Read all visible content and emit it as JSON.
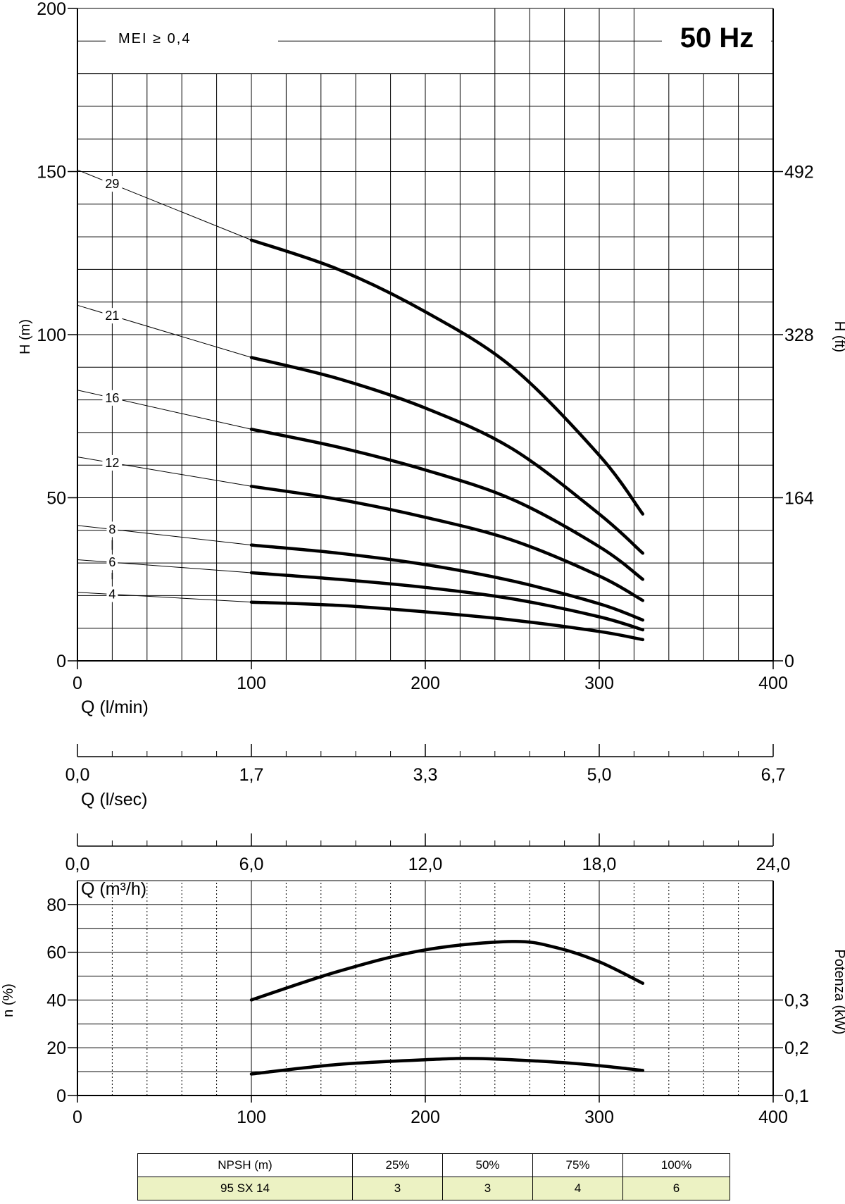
{
  "chart_data": [
    {
      "type": "line",
      "title": "",
      "frequency_label": "50 Hz",
      "mei_label": "MEI ≥ 0,4",
      "xlabel": "Q (l/min)",
      "ylabel": "H (m)",
      "ylabel_right": "H (ft)",
      "xlim": [
        0,
        400
      ],
      "ylim": [
        0,
        200
      ],
      "x_ticks": [
        "0",
        "100",
        "200",
        "300",
        "400"
      ],
      "y_ticks": [
        "0",
        "50",
        "100",
        "150",
        "200"
      ],
      "y_ticks_right": [
        "0",
        "164",
        "328",
        "492"
      ],
      "y_ticks_right_values": [
        0,
        50,
        100,
        150
      ],
      "grid": true,
      "series": [
        {
          "name": "29",
          "x": [
            100,
            150,
            200,
            250,
            300,
            325
          ],
          "y": [
            129,
            120,
            107,
            90,
            63,
            45
          ],
          "zero_flow_head": 150.5
        },
        {
          "name": "21",
          "x": [
            100,
            150,
            200,
            250,
            300,
            325
          ],
          "y": [
            93,
            86.5,
            77.5,
            65,
            45,
            33
          ],
          "zero_flow_head": 109
        },
        {
          "name": "16",
          "x": [
            100,
            150,
            200,
            250,
            300,
            325
          ],
          "y": [
            71,
            65.5,
            58.5,
            49.5,
            35,
            25
          ],
          "zero_flow_head": 83
        },
        {
          "name": "12",
          "x": [
            100,
            150,
            200,
            250,
            300,
            325
          ],
          "y": [
            53.5,
            49.5,
            44,
            37,
            26,
            18.5
          ],
          "zero_flow_head": 62.5
        },
        {
          "name": "8",
          "x": [
            100,
            150,
            200,
            250,
            300,
            325
          ],
          "y": [
            35.5,
            33,
            29.5,
            24.5,
            17.5,
            12.5
          ],
          "zero_flow_head": 41.5
        },
        {
          "name": "6",
          "x": [
            100,
            150,
            200,
            250,
            300,
            325
          ],
          "y": [
            27,
            25,
            22.5,
            19,
            13.5,
            9.5
          ],
          "zero_flow_head": 31
        },
        {
          "name": "4",
          "x": [
            100,
            150,
            200,
            250,
            300,
            325
          ],
          "y": [
            18,
            17,
            15,
            12.5,
            9,
            6.5
          ],
          "zero_flow_head": 21
        }
      ]
    },
    {
      "type": "axis",
      "xlabel": "Q (l/sec)",
      "x_ticks": [
        "0,0",
        "1,7",
        "3,3",
        "5,0",
        "6,7"
      ]
    },
    {
      "type": "axis",
      "xlabel": "Q (m³/h)",
      "x_ticks": [
        "0,0",
        "6,0",
        "12,0",
        "18,0",
        "24,0"
      ]
    },
    {
      "type": "line",
      "xlabel": "Q (l/min)",
      "ylabel": "n (%)",
      "ylabel_right": "Potenza (kW)",
      "xlim": [
        0,
        400
      ],
      "ylim": [
        0,
        90
      ],
      "x_ticks": [
        "0",
        "100",
        "200",
        "300",
        "400"
      ],
      "y_ticks": [
        "0",
        "20",
        "40",
        "60",
        "80"
      ],
      "y_ticks_right": [
        "0,1",
        "0,2",
        "0,3"
      ],
      "y_ticks_right_values": [
        0,
        20,
        40
      ],
      "grid": true,
      "series": [
        {
          "name": "efficiency",
          "x": [
            100,
            150,
            200,
            250,
            275,
            300,
            325
          ],
          "y": [
            40,
            52,
            61,
            64.5,
            62,
            56,
            47
          ]
        },
        {
          "name": "power",
          "x": [
            100,
            150,
            200,
            230,
            275,
            300,
            325
          ],
          "y": [
            9,
            13,
            15,
            15.5,
            14,
            12.5,
            10.5
          ]
        }
      ]
    }
  ],
  "npsh_table": {
    "header": [
      "NPSH (m)",
      "25%",
      "50%",
      "75%",
      "100%"
    ],
    "rows": [
      [
        "95 SX 14",
        "3",
        "3",
        "4",
        "6"
      ]
    ]
  }
}
